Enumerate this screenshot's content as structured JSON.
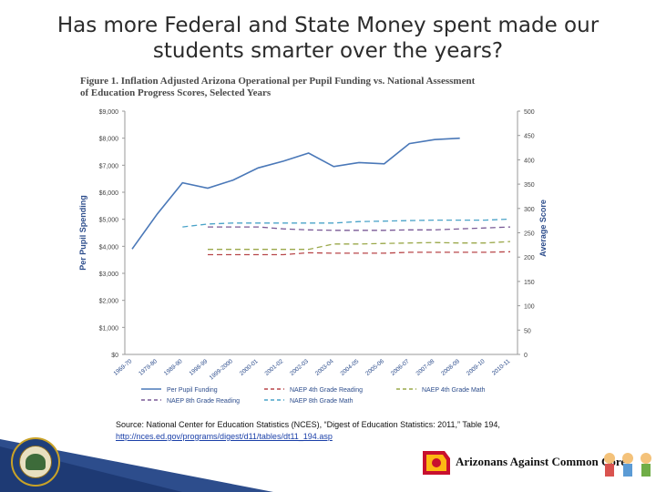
{
  "slide": {
    "title_line1": "Has more Federal and State Money spent made our",
    "title_line2": "students smarter over the years?"
  },
  "figure": {
    "caption_line1": "Figure 1. Inflation Adjusted Arizona Operational per Pupil Funding vs. National Assessment",
    "caption_line2": "of Education Progress Scores, Selected Years"
  },
  "chart_data": {
    "type": "line",
    "categories": [
      "1969-70",
      "1979-80",
      "1989-90",
      "1998-99",
      "1999-2000",
      "2000-01",
      "2001-02",
      "2002-03",
      "2003-04",
      "2004-05",
      "2005-06",
      "2006-07",
      "2007-08",
      "2008-09",
      "2009-10",
      "2010-11"
    ],
    "ylabel": "Per Pupil Spending",
    "y2label": "Average Score",
    "ylim": [
      0,
      9000
    ],
    "y2lim": [
      0,
      500
    ],
    "yticks": [
      "$0",
      "$1,000",
      "$2,000",
      "$3,000",
      "$4,000",
      "$5,000",
      "$6,000",
      "$7,000",
      "$8,000",
      "$9,000"
    ],
    "y2ticks": [
      "0",
      "50",
      "100",
      "150",
      "200",
      "250",
      "300",
      "350",
      "400",
      "450",
      "500"
    ],
    "series": [
      {
        "name": "Per Pupil Funding",
        "axis": "left",
        "color": "#4a78b8",
        "dash": "",
        "values": [
          3900,
          5200,
          6350,
          6150,
          6450,
          6900,
          7150,
          7450,
          6950,
          7100,
          7050,
          7800,
          7950,
          8000,
          null,
          null
        ]
      },
      {
        "name": "NAEP 4th Grade Reading",
        "axis": "right",
        "color": "#b8474a",
        "dash": "6,4",
        "values": [
          null,
          null,
          null,
          205,
          205,
          205,
          205,
          209,
          208,
          208,
          208,
          210,
          210,
          210,
          210,
          211
        ]
      },
      {
        "name": "NAEP 4th Grade Math",
        "axis": "right",
        "color": "#9aa84a",
        "dash": "6,4",
        "values": [
          null,
          null,
          null,
          216,
          216,
          216,
          216,
          216,
          227,
          227,
          228,
          229,
          230,
          229,
          229,
          232
        ]
      },
      {
        "name": "NAEP 8th Grade Reading",
        "axis": "right",
        "color": "#7a5a96",
        "dash": "6,4",
        "values": [
          null,
          null,
          null,
          262,
          262,
          262,
          258,
          256,
          255,
          255,
          255,
          256,
          256,
          258,
          260,
          262
        ]
      },
      {
        "name": "NAEP 8th Grade Math",
        "axis": "right",
        "color": "#4aa3c8",
        "dash": "6,4",
        "values": [
          null,
          null,
          262,
          268,
          270,
          270,
          270,
          270,
          270,
          273,
          274,
          275,
          276,
          276,
          276,
          278
        ]
      }
    ],
    "legend": [
      "Per Pupil Funding",
      "NAEP 4th Grade Reading",
      "NAEP 4th Grade Math",
      "NAEP 8th Grade Reading",
      "NAEP 8th Grade Math"
    ]
  },
  "source": {
    "text": "Source: National Center for Education Statistics (NCES), “Digest of Education Statistics: 2011,” Table 194,",
    "link": "http://nces.ed.gov/programs/digest/d11/tables/dt11_194.asp"
  },
  "branding": {
    "name": "Arizonans Against Common Core"
  },
  "colors": {
    "axis": "#9a9a9a",
    "tick_text": "#444444"
  }
}
